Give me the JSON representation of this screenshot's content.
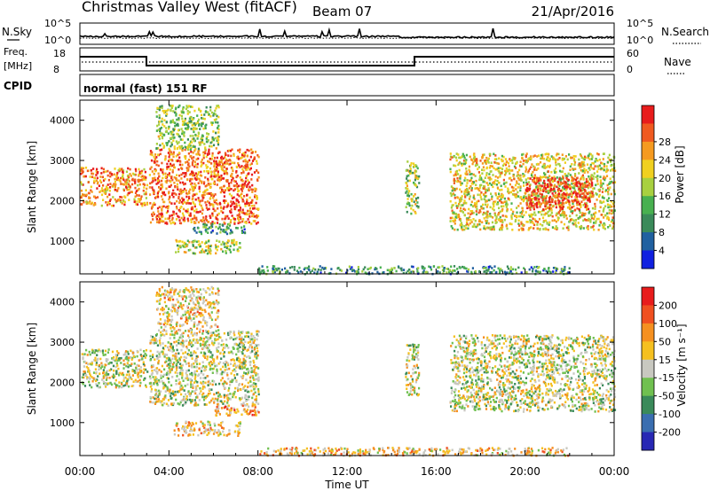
{
  "header": {
    "station": "Christmas Valley West (fitACF)",
    "beam": "Beam 07",
    "date": "21/Apr/2016"
  },
  "top_panels": {
    "nsky_label": "N.Sky",
    "nsky_ticks": [
      "10^5",
      "10^0"
    ],
    "nsearch_label": "N.Search",
    "nsearch_ticks": [
      "10^5",
      "10^0"
    ],
    "freq_label_1": "Freq.",
    "freq_label_2": "[MHz]",
    "freq_ticks": [
      "18",
      "8"
    ],
    "nave_label": "Nave",
    "nave_ticks": [
      "60",
      "0"
    ],
    "cpid_label": "CPID",
    "cpid_text": "normal (fast) 151 RF"
  },
  "chart_data": [
    {
      "type": "heatmap",
      "panel": "power",
      "ylabel": "Slant Range [km]",
      "ylim": [
        180,
        4500
      ],
      "yticks": [
        "1000",
        "2000",
        "3000",
        "4000"
      ],
      "colorbar_label": "Power [dB]",
      "colorbar_ticks": [
        "4",
        "8",
        "12",
        "16",
        "20",
        "24",
        "28"
      ],
      "colors": [
        "#1020e0",
        "#2060a0",
        "#3a8a5a",
        "#48b050",
        "#a8d040",
        "#f0d020",
        "#f59a20",
        "#f05a20",
        "#e81c1c"
      ],
      "regions": [
        {
          "x0": 0.0,
          "x1": 3.0,
          "r0": 1900,
          "r1": 2850,
          "level": 0.75
        },
        {
          "x0": 3.1,
          "x1": 8.0,
          "r0": 1450,
          "r1": 3300,
          "level": 0.8
        },
        {
          "x0": 3.4,
          "x1": 6.2,
          "r0": 3300,
          "r1": 4400,
          "level": 0.45
        },
        {
          "x0": 4.2,
          "x1": 7.2,
          "r0": 700,
          "r1": 1050,
          "level": 0.5
        },
        {
          "x0": 5.0,
          "x1": 7.4,
          "r0": 1200,
          "r1": 1450,
          "level": 0.3
        },
        {
          "x0": 14.6,
          "x1": 15.2,
          "r0": 1700,
          "r1": 3000,
          "level": 0.5
        },
        {
          "x0": 16.6,
          "x1": 24.0,
          "r0": 1300,
          "r1": 3200,
          "level": 0.6
        },
        {
          "x0": 20.0,
          "x1": 23.0,
          "r0": 1800,
          "r1": 2600,
          "level": 0.95
        },
        {
          "x0": 8.0,
          "x1": 22.0,
          "r0": 200,
          "r1": 400,
          "level": 0.3
        }
      ]
    },
    {
      "type": "heatmap",
      "panel": "velocity",
      "ylabel": "Slant Range [km]",
      "ylim": [
        180,
        4500
      ],
      "yticks": [
        "1000",
        "2000",
        "3000",
        "4000"
      ],
      "xlabel": "Time UT",
      "x_ticks": [
        "00:00",
        "04:00",
        "08:00",
        "12:00",
        "16:00",
        "20:00",
        "00:00"
      ],
      "xlim": [
        0,
        24
      ],
      "colorbar_label": "Velocity [m s⁻¹]",
      "colorbar_ticks": [
        "200",
        "100",
        "50",
        "15",
        "-15",
        "-50",
        "-100",
        "-200"
      ],
      "colors": [
        "#2828b4",
        "#3a6eb0",
        "#3a8a5a",
        "#70c050",
        "#c8c8c0",
        "#f5c020",
        "#f59020",
        "#f05020",
        "#e81c1c"
      ],
      "regions": [
        {
          "x0": 0.0,
          "x1": 3.0,
          "r0": 1900,
          "r1": 2850,
          "level": 0.5
        },
        {
          "x0": 3.1,
          "x1": 8.0,
          "r0": 1450,
          "r1": 3300,
          "level": 0.5
        },
        {
          "x0": 3.4,
          "x1": 6.2,
          "r0": 3300,
          "r1": 4400,
          "level": 0.6
        },
        {
          "x0": 4.2,
          "x1": 7.2,
          "r0": 700,
          "r1": 1050,
          "level": 0.62
        },
        {
          "x0": 6.0,
          "x1": 8.0,
          "r0": 1200,
          "r1": 1500,
          "level": 0.7
        },
        {
          "x0": 14.6,
          "x1": 15.2,
          "r0": 1700,
          "r1": 3000,
          "level": 0.5
        },
        {
          "x0": 16.6,
          "x1": 24.0,
          "r0": 1300,
          "r1": 3200,
          "level": 0.5
        },
        {
          "x0": 8.0,
          "x1": 22.0,
          "r0": 200,
          "r1": 400,
          "level": 0.62
        }
      ]
    }
  ]
}
